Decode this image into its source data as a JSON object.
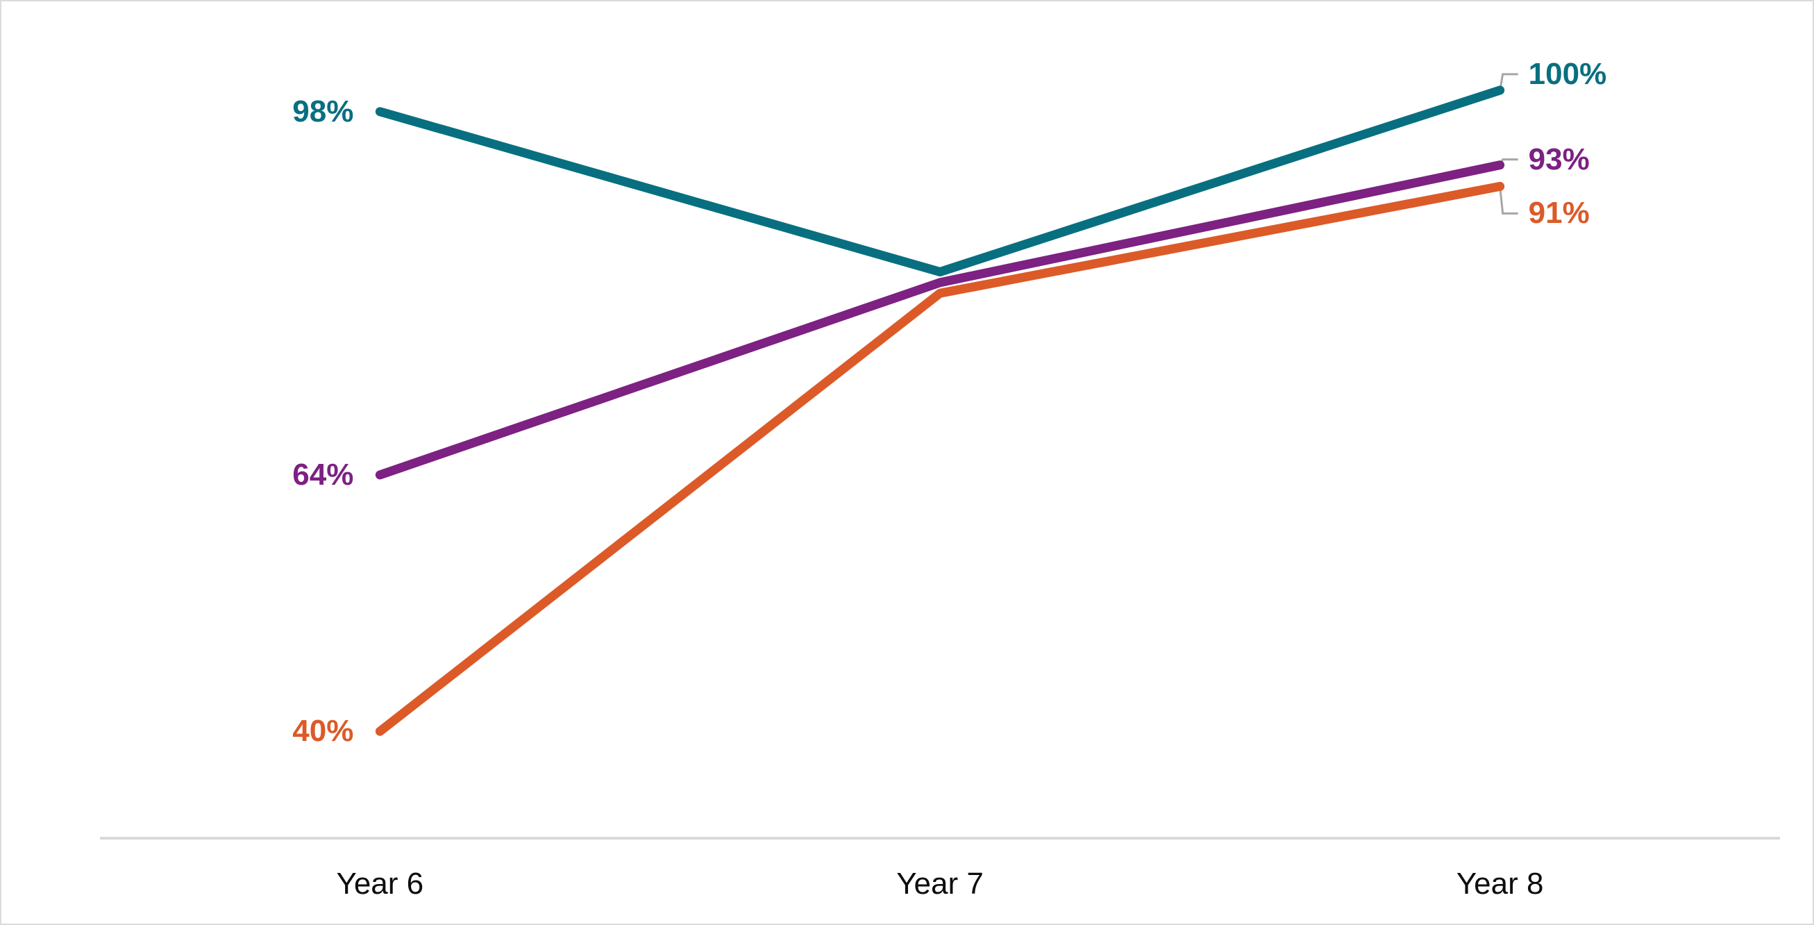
{
  "chart_data": {
    "type": "line",
    "categories": [
      "Year 6",
      "Year 7",
      "Year 8"
    ],
    "series": [
      {
        "name": "teal-series",
        "color": "#086F80",
        "values": [
          98,
          83,
          100
        ],
        "start_label": "98%",
        "end_label": "100%"
      },
      {
        "name": "purple-series",
        "color": "#7D2182",
        "values": [
          64,
          82,
          93
        ],
        "start_label": "64%",
        "end_label": "93%"
      },
      {
        "name": "orange-series",
        "color": "#DC5A28",
        "values": [
          40,
          81,
          91
        ],
        "start_label": "40%",
        "end_label": "91%"
      }
    ],
    "ylim": [
      30,
      105
    ],
    "grid": false,
    "legend": "none",
    "leader_line_color": "#A6A6A6",
    "axis_line_color": "#D9D9D9",
    "axis_text_color": "#0D0D0D"
  }
}
